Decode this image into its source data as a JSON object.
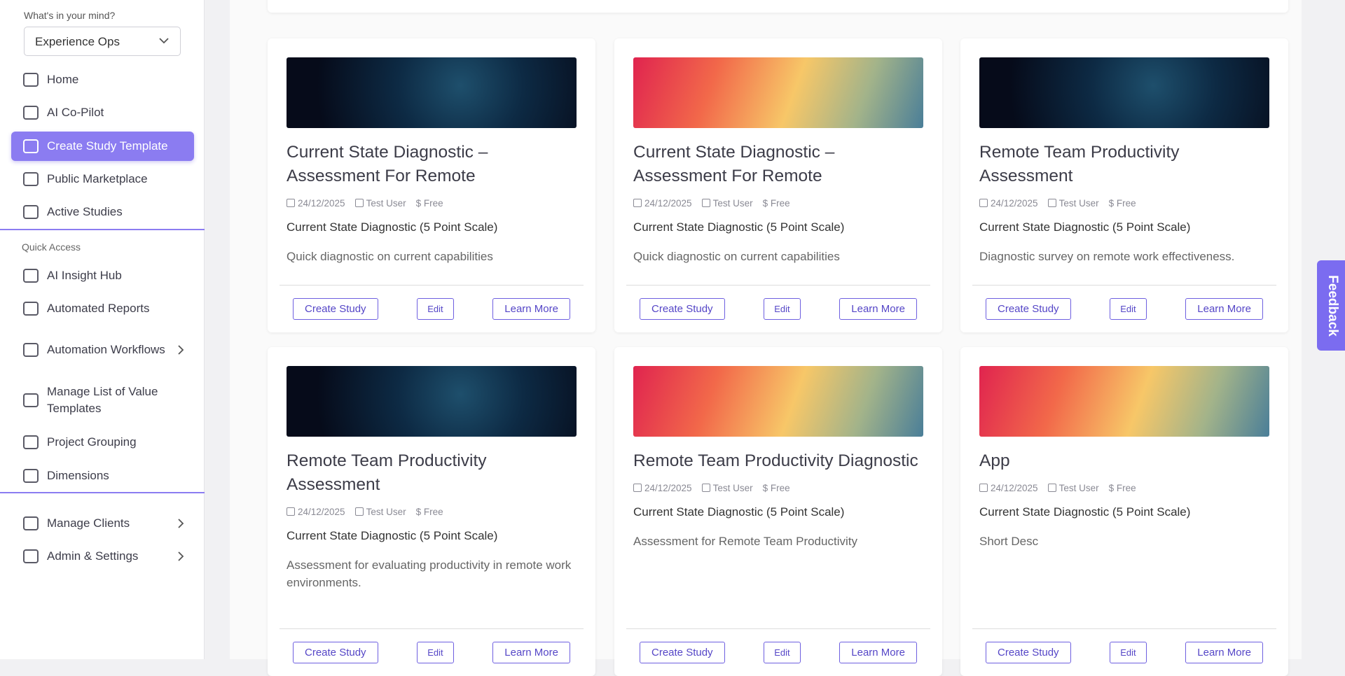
{
  "sidebar": {
    "prompt": "What's in your mind?",
    "workspace": "Experience Ops",
    "nav": [
      {
        "label": "Home"
      },
      {
        "label": "AI Co-Pilot"
      },
      {
        "label": "Create Study Template",
        "active": true
      },
      {
        "label": "Public Marketplace"
      },
      {
        "label": "Active Studies"
      }
    ],
    "quick_access_title": "Quick Access",
    "quick": [
      {
        "label": "AI Insight Hub"
      },
      {
        "label": "Automated Reports"
      },
      {
        "label": "Automation Workflows",
        "expandable": true
      },
      {
        "label": "Manage List of Value Templates"
      },
      {
        "label": "Project Grouping"
      },
      {
        "label": "Dimensions"
      }
    ],
    "bottom": [
      {
        "label": "Manage Clients",
        "expandable": true
      },
      {
        "label": "Admin & Settings",
        "expandable": true
      }
    ]
  },
  "feedback": "Feedback",
  "cards": [
    {
      "image": "space",
      "title": "Current State Diagnostic – Assessment For Remote",
      "date": "24/12/2025",
      "author": "Test User",
      "price": "$ Free",
      "scale": "Current State Diagnostic (5 Point Scale)",
      "description": "Quick diagnostic on current capabilities",
      "actions": [
        "Create Study",
        "Edit",
        "Learn More"
      ]
    },
    {
      "image": "gradient",
      "title": "Current State Diagnostic – Assessment For Remote",
      "date": "24/12/2025",
      "author": "Test User",
      "price": "$ Free",
      "scale": "Current State Diagnostic (5 Point Scale)",
      "description": "Quick diagnostic on current capabilities",
      "actions": [
        "Create Study",
        "Edit",
        "Learn More"
      ]
    },
    {
      "image": "space",
      "title": "Remote Team Productivity Assessment",
      "date": "24/12/2025",
      "author": "Test User",
      "price": "$ Free",
      "scale": "Current State Diagnostic (5 Point Scale)",
      "description": "Diagnostic survey on remote work effectiveness.",
      "actions": [
        "Create Study",
        "Edit",
        "Learn More"
      ]
    },
    {
      "image": "space",
      "title": "Remote Team Productivity Assessment",
      "date": "24/12/2025",
      "author": "Test User",
      "price": "$ Free",
      "scale": "Current State Diagnostic (5 Point Scale)",
      "description": "Assessment for evaluating productivity in remote work environments.",
      "actions": [
        "Create Study",
        "Edit",
        "Learn More"
      ]
    },
    {
      "image": "gradient",
      "title": "Remote Team Productivity Diagnostic",
      "date": "24/12/2025",
      "author": "Test User",
      "price": "$ Free",
      "scale": "Current State Diagnostic (5 Point Scale)",
      "description": "Assessment for Remote Team Productivity",
      "actions": [
        "Create Study",
        "Edit",
        "Learn More"
      ]
    },
    {
      "image": "gradient",
      "title": "App",
      "date": "24/12/2025",
      "author": "Test User",
      "price": "$ Free",
      "scale": "Current State Diagnostic (5 Point Scale)",
      "description": "Short Desc",
      "actions": [
        "Create Study",
        "Edit",
        "Learn More"
      ]
    }
  ]
}
